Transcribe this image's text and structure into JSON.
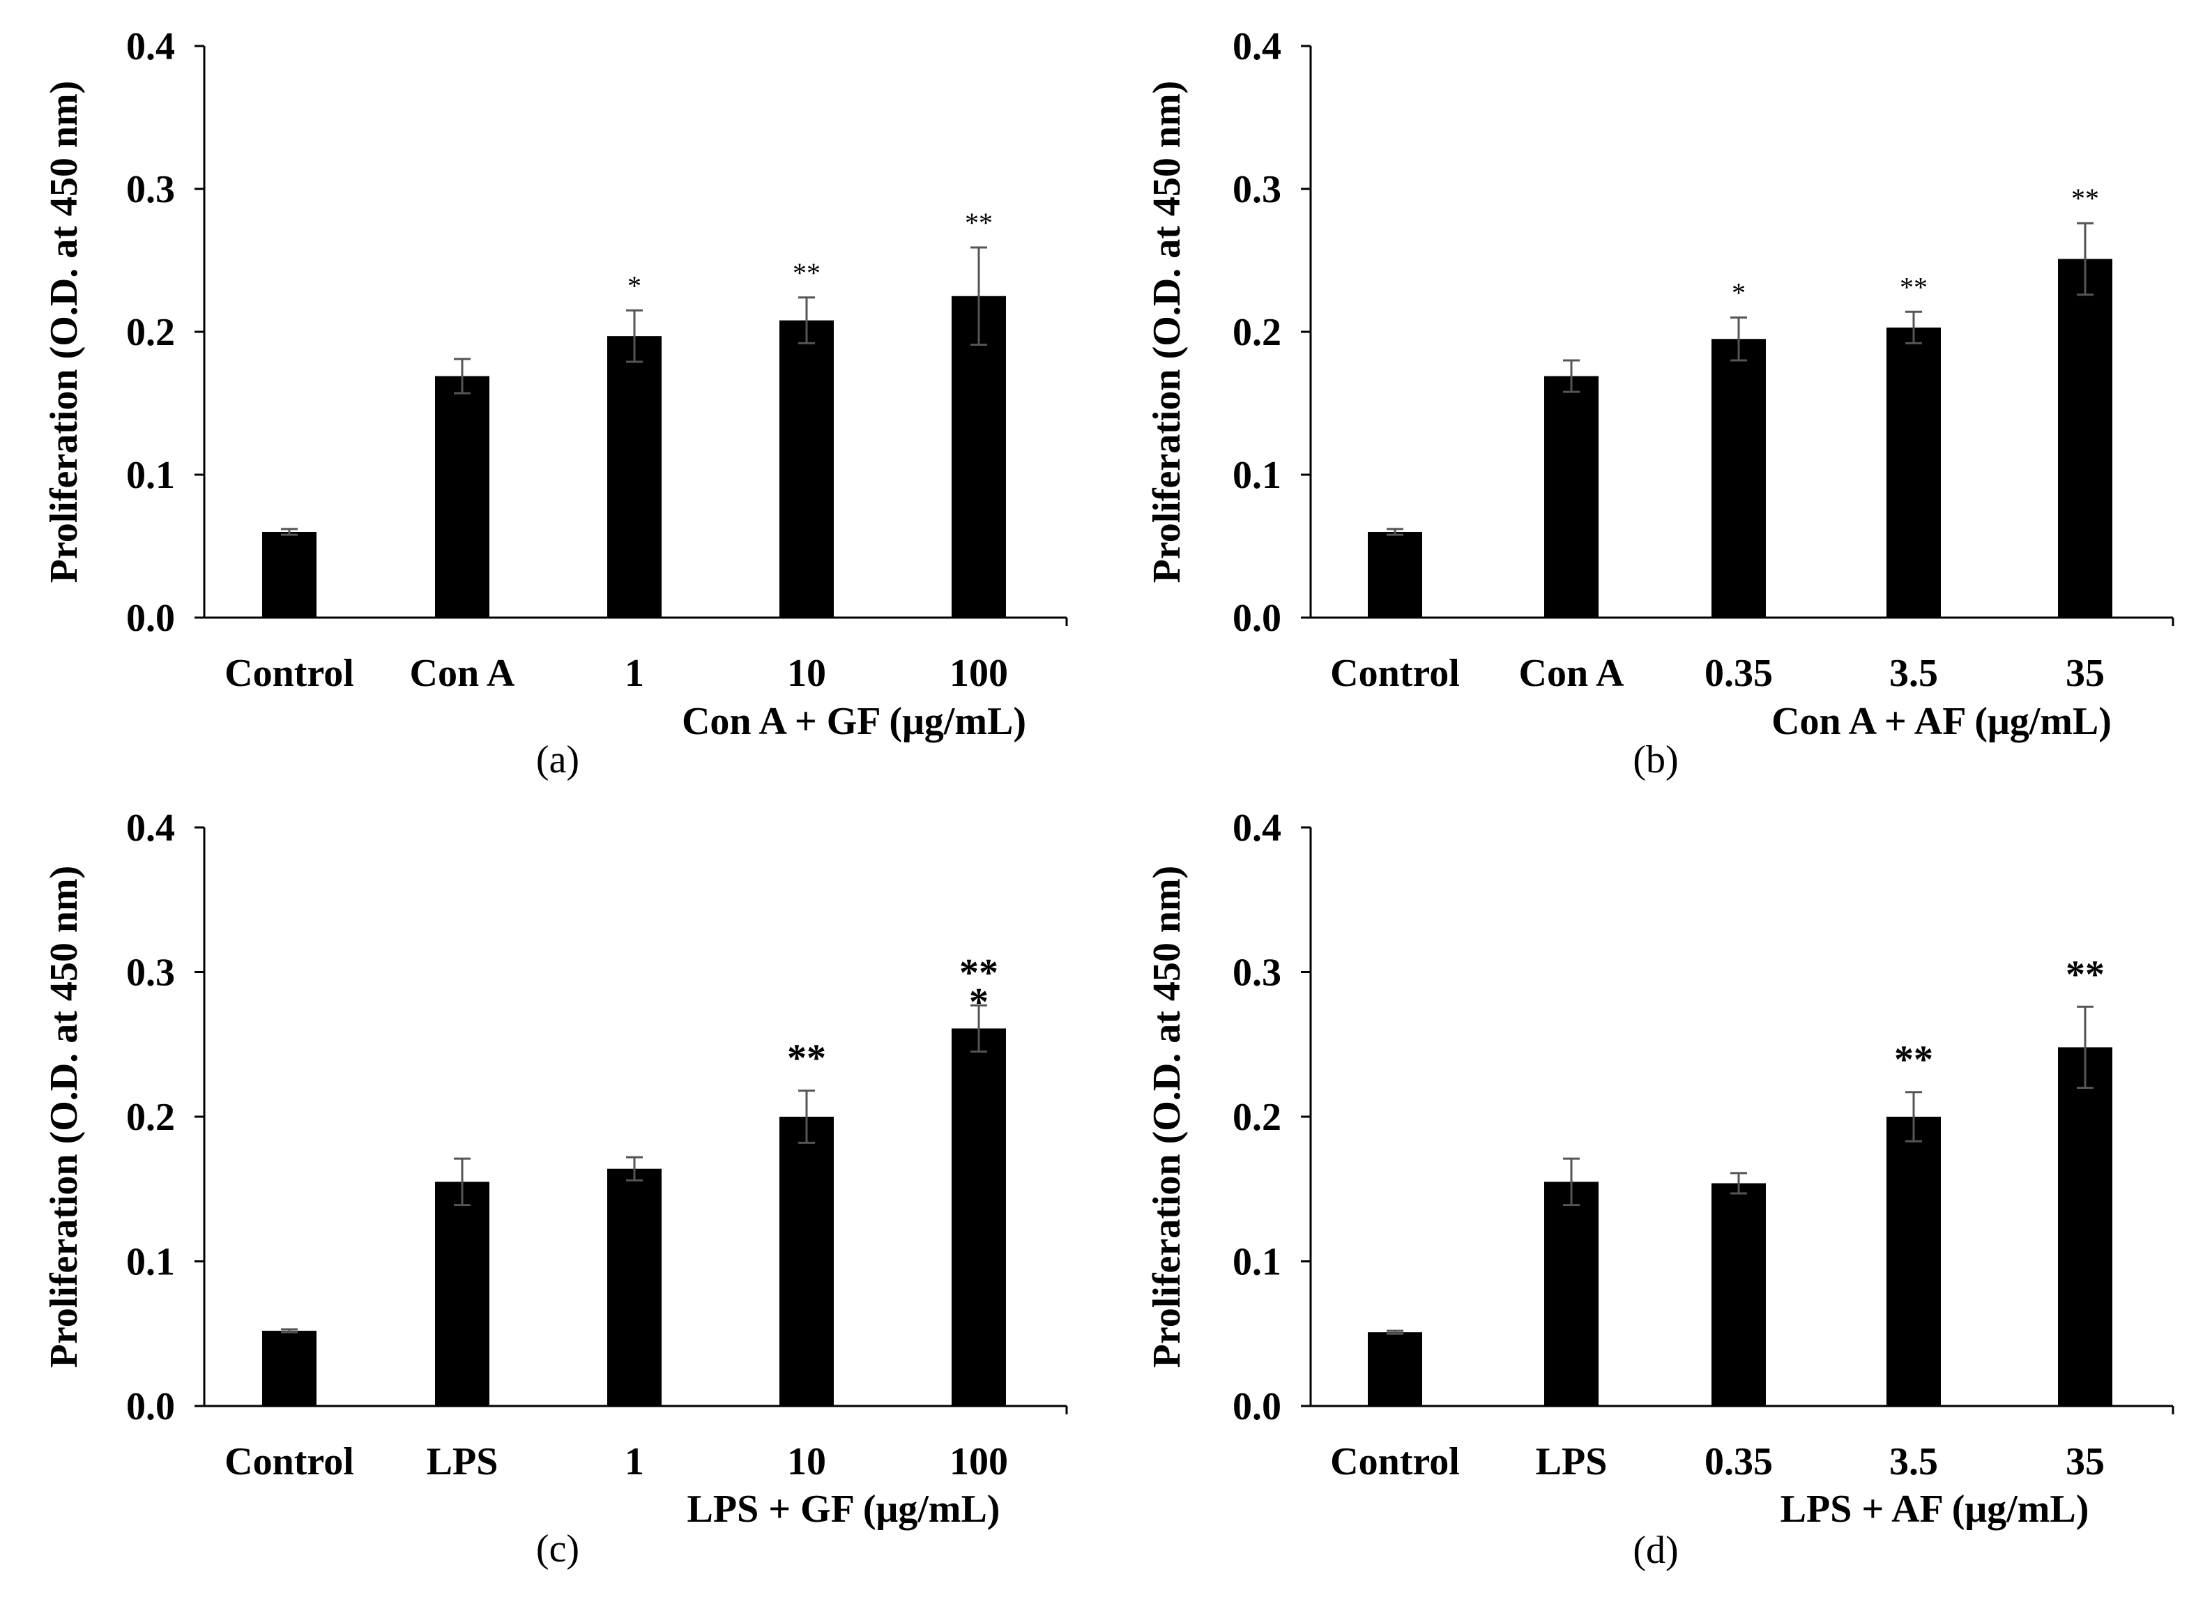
{
  "colors": {
    "bar": "#000000",
    "axis": "#000000",
    "errorbar": "#555555",
    "background": "#ffffff"
  },
  "chart_data": [
    {
      "type": "bar",
      "panel_label": "(a)",
      "ylabel": "Proliferation (O.D. at 450 nm)",
      "ylim": [
        0,
        0.4
      ],
      "yticks": [
        "0.0",
        "0.1",
        "0.2",
        "0.3",
        "0.4"
      ],
      "categories": [
        "Control",
        "Con A",
        "1",
        "10",
        "100"
      ],
      "values": [
        0.06,
        0.169,
        0.197,
        0.208,
        0.225
      ],
      "errors": [
        0.002,
        0.012,
        0.018,
        0.016,
        0.034
      ],
      "significance": [
        "",
        "",
        "*",
        "**",
        "**"
      ],
      "group_label": "Con A  + GF (μg/mL)",
      "grid": false
    },
    {
      "type": "bar",
      "panel_label": "(b)",
      "ylabel": "Proliferation (O.D. at 450 nm)",
      "ylim": [
        0,
        0.4
      ],
      "yticks": [
        "0.0",
        "0.1",
        "0.2",
        "0.3",
        "0.4"
      ],
      "categories": [
        "Control",
        "Con A",
        "0.35",
        "3.5",
        "35"
      ],
      "values": [
        0.06,
        0.169,
        0.195,
        0.203,
        0.251
      ],
      "errors": [
        0.002,
        0.011,
        0.015,
        0.011,
        0.025
      ],
      "significance": [
        "",
        "",
        "*",
        "**",
        "**"
      ],
      "group_label": "Con A  + AF (μg/mL)",
      "grid": false
    },
    {
      "type": "bar",
      "panel_label": "(c)",
      "ylabel": "Proliferation (O.D. at 450 nm)",
      "ylim": [
        0,
        0.4
      ],
      "yticks": [
        "0.0",
        "0.1",
        "0.2",
        "0.3",
        "0.4"
      ],
      "categories": [
        "Control",
        "LPS",
        "1",
        "10",
        "100"
      ],
      "values": [
        0.052,
        0.155,
        0.164,
        0.2,
        0.261
      ],
      "errors": [
        0.001,
        0.016,
        0.008,
        0.018,
        0.016
      ],
      "significance": [
        "",
        "",
        "",
        "**",
        "**\n*"
      ],
      "group_label": "LPS + GF (μg/mL)",
      "grid": false
    },
    {
      "type": "bar",
      "panel_label": "(d)",
      "ylabel": "Proliferation (O.D. at 450 nm)",
      "ylim": [
        0,
        0.4
      ],
      "yticks": [
        "0.0",
        "0.1",
        "0.2",
        "0.3",
        "0.4"
      ],
      "categories": [
        "Control",
        "LPS",
        "0.35",
        "3.5",
        "35"
      ],
      "values": [
        0.051,
        0.155,
        0.154,
        0.2,
        0.248
      ],
      "errors": [
        0.001,
        0.016,
        0.007,
        0.017,
        0.028
      ],
      "significance": [
        "",
        "",
        "",
        "**",
        "**"
      ],
      "group_label": "LPS + AF (μg/mL)",
      "grid": false
    }
  ]
}
